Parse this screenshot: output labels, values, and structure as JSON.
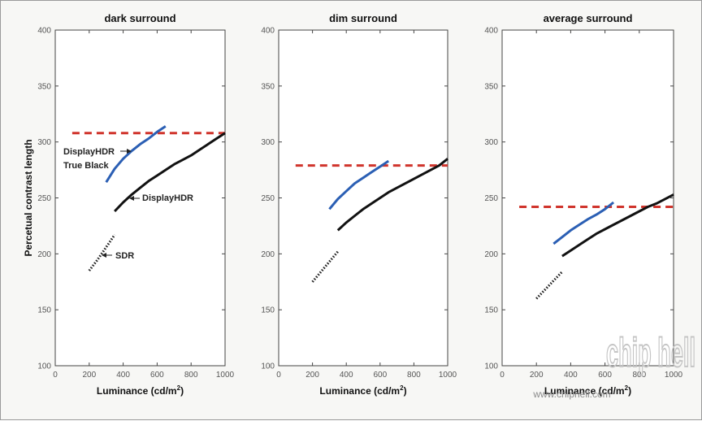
{
  "chart_data": [
    {
      "type": "line",
      "title": "dark surround",
      "xlabel": "Luminance (cd/m²)",
      "ylabel": "Percetual contrast length",
      "xlim": [
        0,
        1000
      ],
      "ylim": [
        100,
        400
      ],
      "xticks": [
        "0",
        "200",
        "400",
        "600",
        "800",
        "1000"
      ],
      "yticks": [
        "100",
        "150",
        "200",
        "250",
        "300",
        "350",
        "400"
      ],
      "series": [
        {
          "style": "dashed",
          "color": "#d0342c",
          "x": [
            100,
            1000
          ],
          "y": [
            308,
            308
          ]
        },
        {
          "style": "solid",
          "color": "#2b5fb4",
          "x": [
            300,
            350,
            400,
            450,
            500,
            550,
            600,
            650
          ],
          "y": [
            264,
            276,
            285,
            292,
            298,
            303,
            309,
            314
          ]
        },
        {
          "style": "solid",
          "color": "#111111",
          "x": [
            350,
            400,
            450,
            500,
            550,
            600,
            650,
            700,
            750,
            800,
            850,
            900,
            950,
            1000
          ],
          "y": [
            238,
            246,
            253,
            259,
            265,
            270,
            275,
            280,
            284,
            288,
            293,
            298,
            303,
            308
          ]
        },
        {
          "style": "dotted",
          "color": "#222222",
          "x": [
            200,
            250,
            300,
            350
          ],
          "y": [
            185,
            195,
            206,
            217
          ]
        }
      ],
      "annotations": [
        "DisplayHDR",
        "True Black",
        "DisplayHDR",
        "SDR"
      ]
    },
    {
      "type": "line",
      "title": "dim surround",
      "xlabel": "Luminance (cd/m²)",
      "xlim": [
        0,
        1000
      ],
      "ylim": [
        100,
        400
      ],
      "xticks": [
        "0",
        "200",
        "400",
        "600",
        "800",
        "1000"
      ],
      "yticks": [
        "100",
        "150",
        "200",
        "250",
        "300",
        "350",
        "400"
      ],
      "series": [
        {
          "style": "dashed",
          "color": "#d0342c",
          "x": [
            100,
            1000
          ],
          "y": [
            279,
            279
          ]
        },
        {
          "style": "solid",
          "color": "#2b5fb4",
          "x": [
            300,
            350,
            400,
            450,
            500,
            550,
            600,
            650
          ],
          "y": [
            240,
            249,
            256,
            263,
            268,
            273,
            278,
            283
          ]
        },
        {
          "style": "solid",
          "color": "#111111",
          "x": [
            350,
            400,
            450,
            500,
            550,
            600,
            650,
            700,
            750,
            800,
            850,
            900,
            950,
            1000
          ],
          "y": [
            221,
            228,
            234,
            240,
            245,
            250,
            255,
            259,
            263,
            267,
            271,
            275,
            279,
            285
          ]
        },
        {
          "style": "dotted",
          "color": "#222222",
          "x": [
            200,
            250,
            300,
            350
          ],
          "y": [
            175,
            184,
            193,
            202
          ]
        }
      ]
    },
    {
      "type": "line",
      "title": "average surround",
      "xlabel": "Luminance (cd/m²)",
      "xlim": [
        0,
        1000
      ],
      "ylim": [
        100,
        400
      ],
      "xticks": [
        "0",
        "200",
        "400",
        "600",
        "800",
        "1000"
      ],
      "yticks": [
        "100",
        "150",
        "200",
        "250",
        "300",
        "350",
        "400"
      ],
      "series": [
        {
          "style": "dashed",
          "color": "#d0342c",
          "x": [
            100,
            1000
          ],
          "y": [
            242,
            242
          ]
        },
        {
          "style": "solid",
          "color": "#2b5fb4",
          "x": [
            300,
            350,
            400,
            450,
            500,
            550,
            600,
            650
          ],
          "y": [
            209,
            215,
            221,
            226,
            231,
            235,
            240,
            246
          ]
        },
        {
          "style": "solid",
          "color": "#111111",
          "x": [
            350,
            400,
            450,
            500,
            550,
            600,
            650,
            700,
            750,
            800,
            850,
            900,
            950,
            1000
          ],
          "y": [
            198,
            203,
            208,
            213,
            218,
            222,
            226,
            230,
            234,
            238,
            242,
            245,
            249,
            253
          ]
        },
        {
          "style": "dotted",
          "color": "#222222",
          "x": [
            200,
            250,
            300,
            350
          ],
          "y": [
            160,
            168,
            176,
            184
          ]
        }
      ]
    }
  ],
  "watermark": {
    "logo_text": "chip hell",
    "url": "www.chiphell.com"
  }
}
